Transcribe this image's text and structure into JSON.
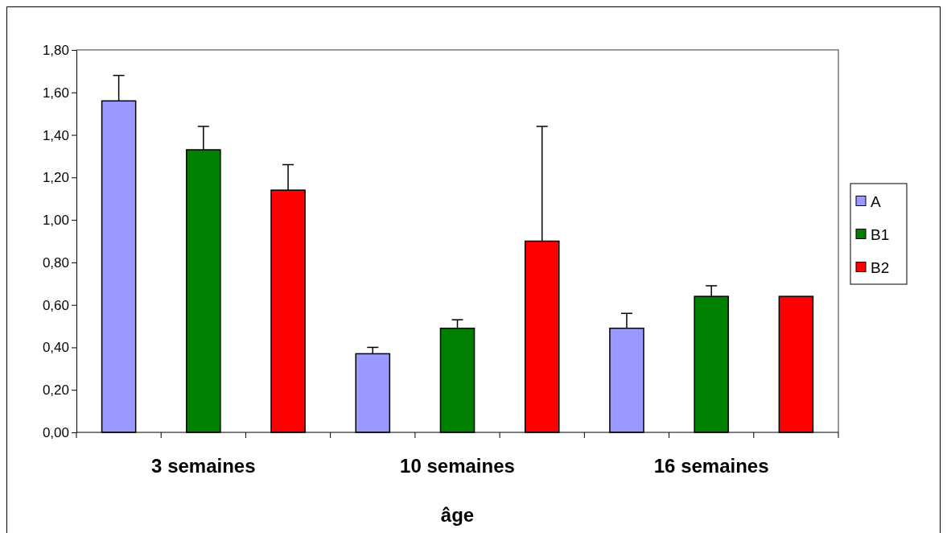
{
  "chart_data": {
    "type": "bar",
    "xlabel": "âge",
    "categories": [
      "3 semaines",
      "10 semaines",
      "16 semaines"
    ],
    "series": [
      {
        "name": "A",
        "color": "#9999ff",
        "values": [
          1.56,
          0.37,
          0.49
        ],
        "errors": [
          [
            1.56,
            1.68
          ],
          [
            0.37,
            0.4
          ],
          [
            0.49,
            0.56
          ]
        ]
      },
      {
        "name": "B1",
        "color": "#008000",
        "values": [
          1.33,
          0.49,
          0.64
        ],
        "errors": [
          [
            1.33,
            1.44
          ],
          [
            0.49,
            0.53
          ],
          [
            0.64,
            0.69
          ]
        ]
      },
      {
        "name": "B2",
        "color": "#ff0000",
        "values": [
          1.14,
          0.9,
          0.64
        ],
        "errors": [
          [
            1.14,
            1.26
          ],
          [
            0.9,
            1.44
          ],
          null
        ]
      }
    ],
    "ylim": [
      0,
      1.8
    ],
    "yticks": [
      {
        "value": 0,
        "label": "0,00"
      },
      {
        "value": 0.2,
        "label": "0,20"
      },
      {
        "value": 0.4,
        "label": "0,40"
      },
      {
        "value": 0.6,
        "label": "0,60"
      },
      {
        "value": 0.8,
        "label": "0,80"
      },
      {
        "value": 1,
        "label": "1,00"
      },
      {
        "value": 1.2,
        "label": "1,20"
      },
      {
        "value": 1.4,
        "label": "1,40"
      },
      {
        "value": 1.6,
        "label": "1,60"
      },
      {
        "value": 1.8,
        "label": "1,80"
      }
    ],
    "grid": false,
    "legend": "right"
  }
}
